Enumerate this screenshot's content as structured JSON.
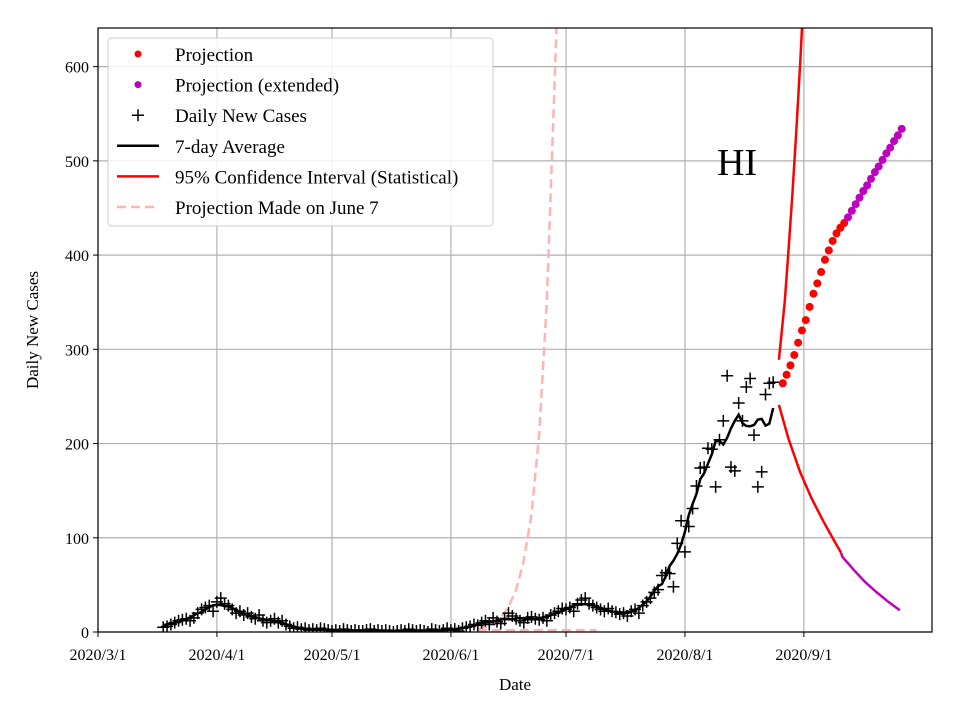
{
  "chart_data": {
    "type": "line",
    "title": "",
    "annotation": "HI",
    "xlabel": "Date",
    "ylabel": "Daily New Cases",
    "x_origin_date": "2020-03-01",
    "xlim_days": [
      0,
      217.4
    ],
    "ylim": [
      0,
      641
    ],
    "grid": true,
    "legend_position": "top-left",
    "x_ticks": [
      {
        "label": "2020/3/1",
        "day": 0
      },
      {
        "label": "2020/4/1",
        "day": 31
      },
      {
        "label": "2020/5/1",
        "day": 61
      },
      {
        "label": "2020/6/1",
        "day": 92
      },
      {
        "label": "2020/7/1",
        "day": 122
      },
      {
        "label": "2020/8/1",
        "day": 153
      },
      {
        "label": "2020/9/1",
        "day": 184
      }
    ],
    "y_ticks": [
      0,
      100,
      200,
      300,
      400,
      500,
      600
    ],
    "legend": [
      {
        "label": "Projection",
        "kind": "dot",
        "color": "#ff0000"
      },
      {
        "label": "Projection (extended)",
        "kind": "dot",
        "color": "#bf00bf"
      },
      {
        "label": "Daily New Cases",
        "kind": "plus",
        "color": "#000000"
      },
      {
        "label": "7-day Average",
        "kind": "line",
        "color": "#000000"
      },
      {
        "label": "95% Confidence Interval (Statistical)",
        "kind": "line",
        "color": "#ff0000"
      },
      {
        "label": "Projection Made on June 7",
        "kind": "dashed",
        "color": "#ffb3b3"
      }
    ],
    "daily_new_cases": {
      "start_day": 17,
      "values": [
        5,
        6,
        8,
        10,
        12,
        13,
        14,
        12,
        15,
        20,
        24,
        26,
        28,
        22,
        32,
        36,
        30,
        28,
        24,
        20,
        22,
        18,
        20,
        16,
        14,
        18,
        12,
        10,
        12,
        14,
        10,
        12,
        8,
        6,
        4,
        5,
        3,
        4,
        2,
        3,
        2,
        4,
        3,
        2,
        1,
        2,
        1,
        3,
        2,
        1,
        2,
        1,
        1,
        2,
        3,
        1,
        2,
        1,
        2,
        1,
        0,
        1,
        2,
        1,
        3,
        2,
        1,
        2,
        1,
        0,
        3,
        2,
        1,
        2,
        4,
        2,
        3,
        1,
        4,
        5,
        6,
        8,
        7,
        10,
        12,
        8,
        15,
        11,
        9,
        13,
        20,
        17,
        14,
        12,
        10,
        15,
        16,
        14,
        13,
        15,
        12,
        18,
        20,
        22,
        25,
        24,
        26,
        22,
        30,
        34,
        36,
        30,
        28,
        26,
        24,
        22,
        25,
        22,
        21,
        19,
        20,
        17,
        22,
        24,
        20,
        28,
        32,
        36,
        42,
        45,
        60,
        63,
        62,
        48,
        94,
        118,
        85,
        112,
        131,
        155,
        174,
        175,
        195,
        194,
        154,
        204,
        224,
        272,
        175,
        171,
        243,
        224,
        260,
        269,
        209,
        154,
        170,
        252,
        264,
        265
      ]
    },
    "rolling_window": 7,
    "projection": {
      "start_day": 178.5,
      "values": [
        264,
        273,
        283,
        294,
        307,
        320,
        331,
        345,
        359,
        370,
        382,
        395,
        405,
        415,
        423,
        429,
        434
      ]
    },
    "projection_extended": {
      "start_day": 195.5,
      "values": [
        440,
        447,
        454,
        461,
        468,
        474,
        481,
        488,
        494,
        501,
        508,
        514,
        521,
        527,
        534
      ]
    },
    "ci_upper": [
      [
        177.5,
        289
      ],
      [
        178,
        310
      ],
      [
        179,
        350
      ],
      [
        180,
        405
      ],
      [
        181,
        465
      ],
      [
        182,
        530
      ],
      [
        183,
        600
      ],
      [
        184,
        680
      ]
    ],
    "ci_lower": [
      [
        177.5,
        241
      ],
      [
        180,
        205
      ],
      [
        183,
        170
      ],
      [
        186,
        142
      ],
      [
        189,
        118
      ],
      [
        192,
        96
      ],
      [
        193.7,
        84
      ]
    ],
    "ci_lower_extended": [
      [
        193.7,
        84
      ],
      [
        194,
        80
      ],
      [
        197,
        66
      ],
      [
        200,
        53
      ],
      [
        203,
        42
      ],
      [
        206,
        32
      ],
      [
        209,
        23
      ]
    ],
    "june7_projection_upper": [
      [
        99,
        3
      ],
      [
        101,
        5
      ],
      [
        103,
        9
      ],
      [
        105,
        15
      ],
      [
        107,
        27
      ],
      [
        109,
        45
      ],
      [
        111,
        76
      ],
      [
        113,
        125
      ],
      [
        115,
        210
      ],
      [
        117,
        350
      ],
      [
        119,
        580
      ],
      [
        120,
        700
      ]
    ],
    "june7_projection_lower": [
      [
        99,
        2
      ],
      [
        130,
        2
      ]
    ]
  }
}
